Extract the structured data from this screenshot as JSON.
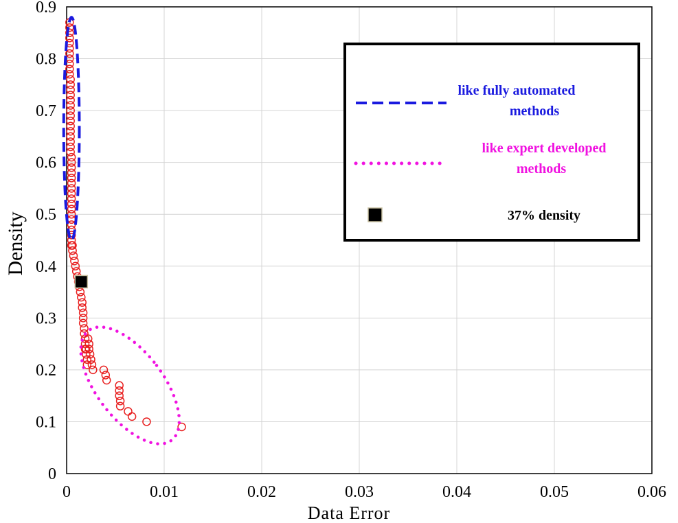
{
  "chart_data": {
    "type": "scatter",
    "title": "",
    "xlabel": "Data Error",
    "ylabel": "Density",
    "xlim": [
      0,
      0.06
    ],
    "ylim": [
      0,
      0.9
    ],
    "grid": true,
    "x_ticks": [
      "0",
      "0.01",
      "0.02",
      "0.03",
      "0.04",
      "0.05",
      "0.06"
    ],
    "y_ticks": [
      "0",
      "0.1",
      "0.2",
      "0.3",
      "0.4",
      "0.5",
      "0.6",
      "0.7",
      "0.8",
      "0.9"
    ],
    "legend_position": "top-right",
    "colors": {
      "points": "#e82020",
      "automated": "#1a1adf",
      "expert": "#f012e0",
      "marker": "#000000"
    },
    "series": [
      {
        "marker": "circle",
        "x": [
          0.0003,
          0.0003,
          0.0003,
          0.0003,
          0.0003,
          0.0003,
          0.0003,
          0.0003,
          0.0003,
          0.0003,
          0.0003,
          0.0004,
          0.0004,
          0.0004,
          0.0004,
          0.0004,
          0.0004,
          0.0004,
          0.0004,
          0.0004,
          0.0004,
          0.0004,
          0.0004,
          0.0004,
          0.0004,
          0.0004,
          0.0005,
          0.0005,
          0.0005,
          0.0005,
          0.0005,
          0.0005,
          0.0005,
          0.0005,
          0.0005,
          0.0005,
          0.0005,
          0.0005,
          0.0005,
          0.0005,
          0.0005,
          0.0005,
          0.0005,
          0.0005,
          0.0006,
          0.0006,
          0.0006,
          0.0007,
          0.0008,
          0.0009,
          0.001,
          0.0011,
          0.0012,
          0.0013,
          0.0014,
          0.0015,
          0.0016,
          0.0016,
          0.0017,
          0.0017,
          0.0017,
          0.0018,
          0.0018,
          0.0019,
          0.0019,
          0.0019,
          0.002,
          0.002,
          0.0021,
          0.0021,
          0.0022,
          0.0023,
          0.0023,
          0.0024,
          0.0025,
          0.0026,
          0.0027,
          0.0038,
          0.004,
          0.0041,
          0.0054,
          0.0054,
          0.0054,
          0.0055,
          0.0055,
          0.0063,
          0.0067,
          0.0082,
          0.0118
        ],
        "y": [
          0.87,
          0.86,
          0.85,
          0.84,
          0.83,
          0.82,
          0.81,
          0.8,
          0.79,
          0.78,
          0.77,
          0.76,
          0.75,
          0.74,
          0.73,
          0.72,
          0.71,
          0.7,
          0.69,
          0.68,
          0.67,
          0.66,
          0.65,
          0.64,
          0.63,
          0.62,
          0.61,
          0.6,
          0.59,
          0.58,
          0.57,
          0.56,
          0.55,
          0.54,
          0.53,
          0.52,
          0.51,
          0.5,
          0.49,
          0.48,
          0.47,
          0.46,
          0.45,
          0.44,
          0.44,
          0.43,
          0.43,
          0.42,
          0.41,
          0.4,
          0.39,
          0.38,
          0.37,
          0.36,
          0.35,
          0.34,
          0.33,
          0.32,
          0.31,
          0.3,
          0.29,
          0.28,
          0.27,
          0.26,
          0.25,
          0.24,
          0.24,
          0.23,
          0.22,
          0.21,
          0.26,
          0.25,
          0.24,
          0.23,
          0.22,
          0.21,
          0.2,
          0.2,
          0.19,
          0.18,
          0.17,
          0.16,
          0.15,
          0.14,
          0.13,
          0.12,
          0.11,
          0.1,
          0.09
        ]
      }
    ],
    "highlight_point": {
      "x": 0.0015,
      "y": 0.37
    },
    "annotations": {
      "automated_ellipse": {
        "cx": 0.0005,
        "cy": 0.665,
        "rx": 0.0008,
        "ry": 0.215
      },
      "expert_ellipse": {
        "cx": 0.0065,
        "cy": 0.17,
        "rx": 0.0062,
        "ry": 0.17,
        "angle_deg": 37
      }
    },
    "legend": [
      {
        "style": "dashed",
        "label_line1": "like fully automated",
        "label_line2": "methods"
      },
      {
        "style": "dotted",
        "label_line1": "like expert developed",
        "label_line2": "methods"
      },
      {
        "style": "square",
        "label_line1": "37% density"
      }
    ]
  }
}
